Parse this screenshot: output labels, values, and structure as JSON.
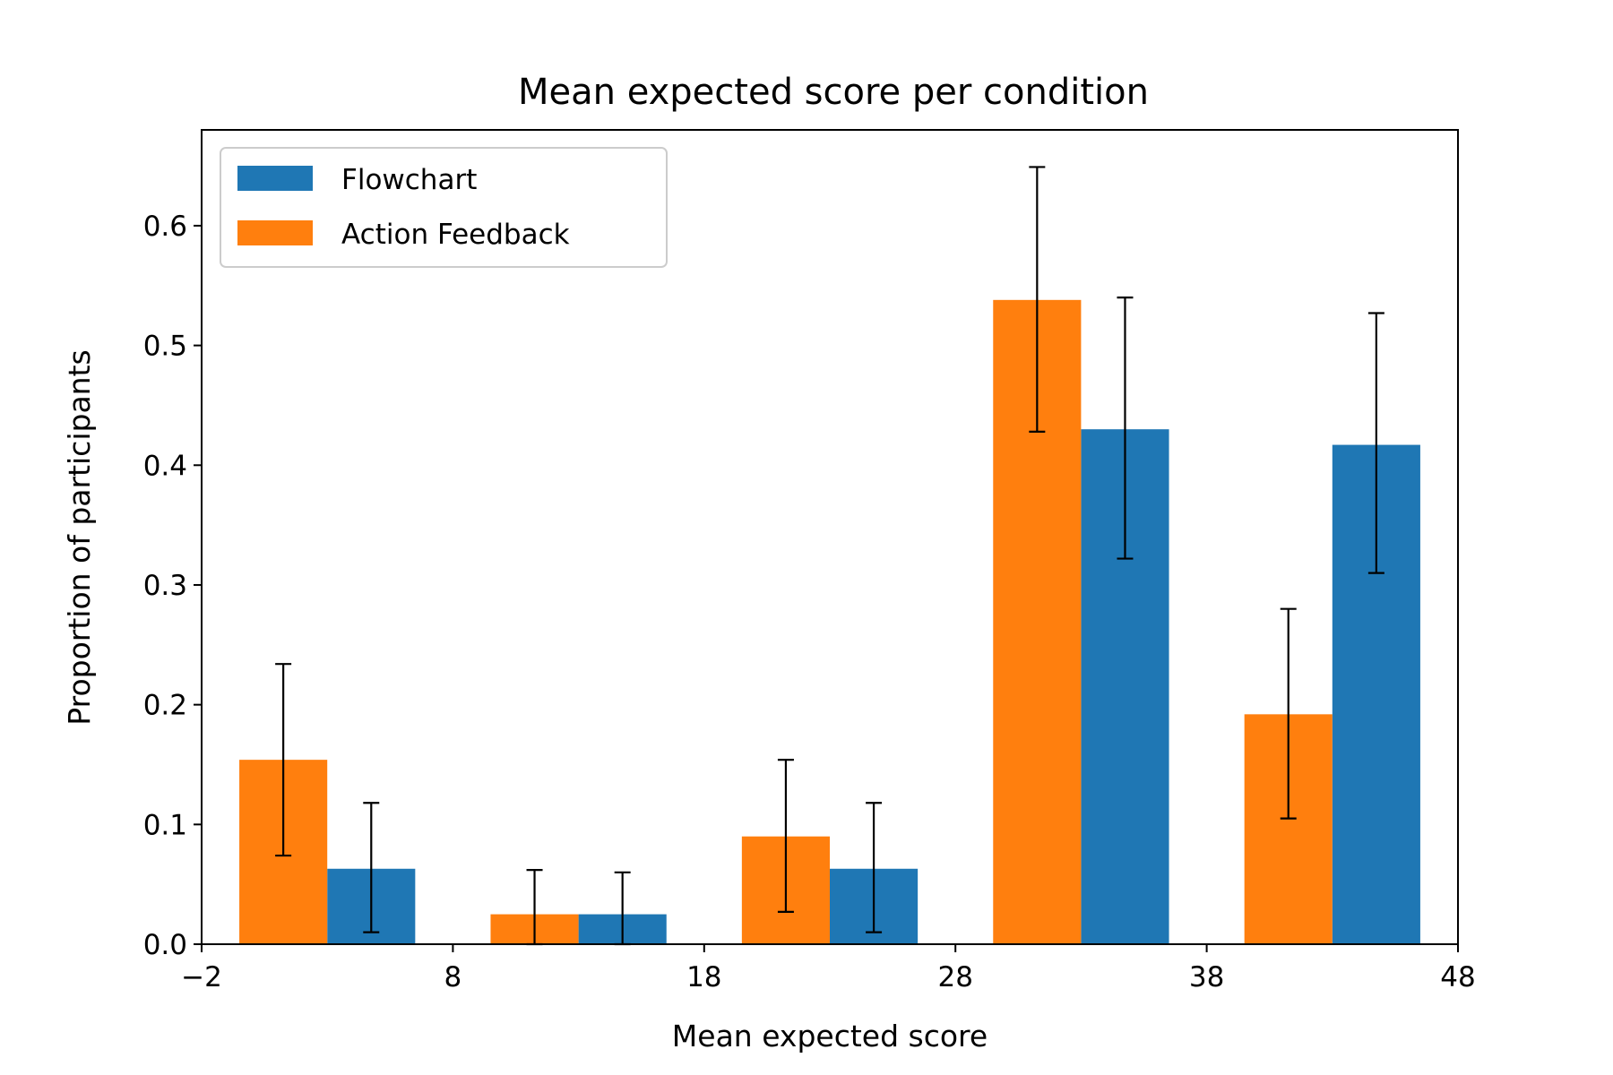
{
  "chart_data": {
    "type": "bar",
    "title": "Mean expected score per condition",
    "xlabel": "Mean expected score",
    "ylabel": "Proportion of participants",
    "xlim": [
      -2,
      48
    ],
    "ylim": [
      0,
      0.68
    ],
    "xticks": [
      -2,
      8,
      18,
      28,
      38,
      48
    ],
    "xtick_labels": [
      "−2",
      "8",
      "18",
      "28",
      "38",
      "48"
    ],
    "yticks": [
      0.0,
      0.1,
      0.2,
      0.3,
      0.4,
      0.5,
      0.6
    ],
    "ytick_labels": [
      "0.0",
      "0.1",
      "0.2",
      "0.3",
      "0.4",
      "0.5",
      "0.6"
    ],
    "bin_starts": [
      -0.5,
      9.5,
      19.5,
      29.5,
      39.5
    ],
    "bar_width": 3.5,
    "legend_position": "upper left",
    "grid": false,
    "series": [
      {
        "name": "Flowchart",
        "color": "#1f77b4",
        "bin_offset": 3.5,
        "values": [
          0.063,
          0.025,
          0.063,
          0.43,
          0.417
        ],
        "err_low": [
          0.01,
          0.0,
          0.01,
          0.322,
          0.31
        ],
        "err_high": [
          0.118,
          0.06,
          0.118,
          0.54,
          0.527
        ]
      },
      {
        "name": "Action Feedback",
        "color": "#ff7f0e",
        "bin_offset": 0,
        "values": [
          0.154,
          0.025,
          0.09,
          0.538,
          0.192
        ],
        "err_low": [
          0.074,
          0.0,
          0.027,
          0.428,
          0.105
        ],
        "err_high": [
          0.234,
          0.062,
          0.154,
          0.649,
          0.28
        ]
      }
    ]
  }
}
